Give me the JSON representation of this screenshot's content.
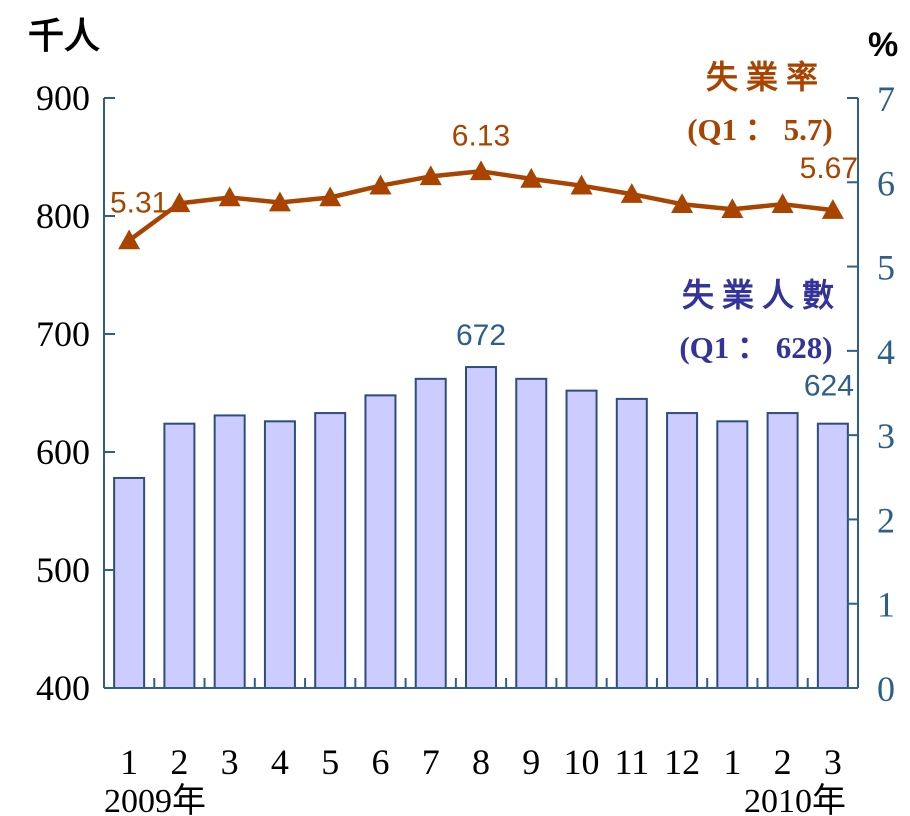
{
  "chart_data": {
    "type": "bar+line",
    "left_axis": {
      "unit": "千人",
      "min": 400,
      "max": 900,
      "ticks": [
        "400",
        "500",
        "600",
        "700",
        "800",
        "900"
      ]
    },
    "right_axis": {
      "unit": "%",
      "min": 0,
      "max": 7,
      "ticks": [
        "0",
        "1",
        "2",
        "3",
        "4",
        "5",
        "6",
        "7"
      ]
    },
    "categories": [
      "1",
      "2",
      "3",
      "4",
      "5",
      "6",
      "7",
      "8",
      "9",
      "10",
      "11",
      "12",
      "1",
      "2",
      "3"
    ],
    "year_labels": [
      "2009年",
      "2010年"
    ],
    "series": [
      {
        "name": "失業人數",
        "kind": "bar",
        "axis": "left",
        "values": [
          578,
          624,
          631,
          626,
          633,
          648,
          662,
          672,
          662,
          652,
          645,
          633,
          626,
          633,
          624
        ],
        "color": "#ccccff",
        "edge_color": "#2e4d7e"
      },
      {
        "name": "失業率",
        "kind": "line",
        "axis": "right",
        "values": [
          5.31,
          5.75,
          5.82,
          5.76,
          5.82,
          5.96,
          6.07,
          6.13,
          6.04,
          5.96,
          5.86,
          5.74,
          5.68,
          5.74,
          5.67
        ],
        "color": "#a84400"
      }
    ],
    "legend": {
      "rate_label": "失 業 率",
      "rate_q1": "(Q1 ： 5.7)",
      "count_label": "失 業 人 數",
      "count_q1": "(Q1 ： 628)"
    },
    "annotations": {
      "rate": [
        {
          "index": 0,
          "text": "5.31"
        },
        {
          "index": 7,
          "text": "6.13"
        },
        {
          "index": 14,
          "text": "5.67"
        }
      ],
      "count": [
        {
          "index": 7,
          "text": "672"
        },
        {
          "index": 14,
          "text": "624"
        }
      ]
    },
    "colors": {
      "axis": "#2e5f8a",
      "rate": "#a84400",
      "count_annotation": "#2e5f8a",
      "count_legend": "#333399"
    }
  }
}
